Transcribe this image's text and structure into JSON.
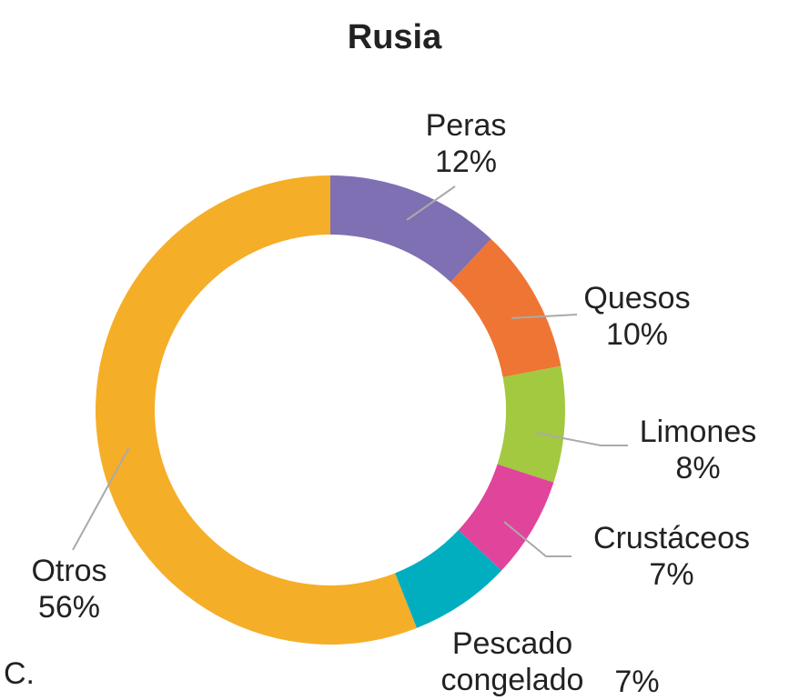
{
  "chart_data": {
    "type": "donut",
    "title": "Rusia",
    "categories": [
      "Peras",
      "Quesos",
      "Limones",
      "Crustáceos",
      "Pescado congelado",
      "Otros"
    ],
    "values": [
      12,
      10,
      8,
      7,
      7,
      56
    ],
    "value_labels": [
      "12%",
      "10%",
      "8%",
      "7%",
      "7%",
      "56%"
    ],
    "colors": [
      "#7f6fb3",
      "#ef7534",
      "#a2c93f",
      "#e0449b",
      "#00aec0",
      "#f5ae27"
    ],
    "footnote": "C."
  }
}
